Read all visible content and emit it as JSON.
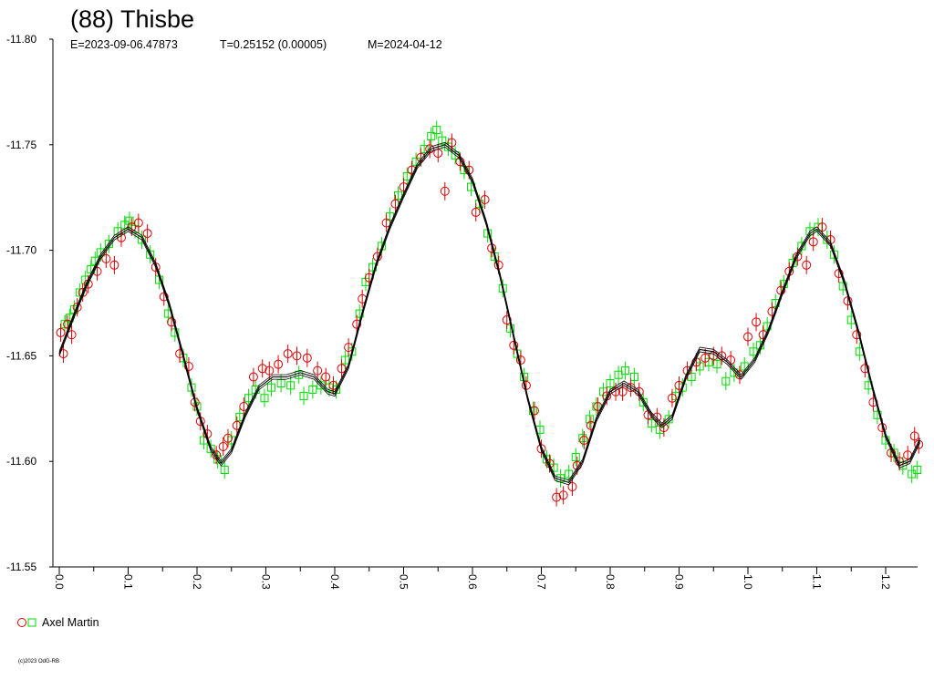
{
  "chart_data": {
    "type": "scatter",
    "title": "(88) Thisbe",
    "subtitle": {
      "epoch": "E=2023-09-06.47873",
      "period": "T=0.25152 (0.00005)",
      "mean": "M=2024-04-12"
    },
    "xlabel": "",
    "ylabel": "",
    "xlim": [
      0.0,
      1.25
    ],
    "ylim": [
      -11.55,
      -11.8
    ],
    "y_inverted": true,
    "grid": false,
    "xticks": [
      "0.0",
      "0.1",
      "0.2",
      "0.3",
      "0.4",
      "0.5",
      "0.6",
      "0.7",
      "0.8",
      "0.9",
      "1.0",
      "1.1",
      "1.2"
    ],
    "yticks": [
      "-11.80",
      "-11.75",
      "-11.70",
      "-11.65",
      "-11.60",
      "-11.55"
    ],
    "fit_curve": {
      "name": "",
      "color": "#000000",
      "points": [
        [
          0.0,
          -11.651
        ],
        [
          0.02,
          -11.668
        ],
        [
          0.04,
          -11.684
        ],
        [
          0.06,
          -11.697
        ],
        [
          0.08,
          -11.706
        ],
        [
          0.1,
          -11.71
        ],
        [
          0.12,
          -11.706
        ],
        [
          0.14,
          -11.693
        ],
        [
          0.16,
          -11.674
        ],
        [
          0.18,
          -11.65
        ],
        [
          0.2,
          -11.625
        ],
        [
          0.22,
          -11.606
        ],
        [
          0.235,
          -11.599
        ],
        [
          0.25,
          -11.605
        ],
        [
          0.27,
          -11.622
        ],
        [
          0.29,
          -11.635
        ],
        [
          0.31,
          -11.64
        ],
        [
          0.33,
          -11.64
        ],
        [
          0.35,
          -11.642
        ],
        [
          0.37,
          -11.64
        ],
        [
          0.39,
          -11.633
        ],
        [
          0.4,
          -11.632
        ],
        [
          0.42,
          -11.645
        ],
        [
          0.44,
          -11.67
        ],
        [
          0.46,
          -11.693
        ],
        [
          0.48,
          -11.711
        ],
        [
          0.5,
          -11.726
        ],
        [
          0.52,
          -11.74
        ],
        [
          0.54,
          -11.748
        ],
        [
          0.56,
          -11.75
        ],
        [
          0.58,
          -11.745
        ],
        [
          0.6,
          -11.733
        ],
        [
          0.62,
          -11.713
        ],
        [
          0.64,
          -11.688
        ],
        [
          0.66,
          -11.659
        ],
        [
          0.68,
          -11.63
        ],
        [
          0.7,
          -11.606
        ],
        [
          0.72,
          -11.592
        ],
        [
          0.74,
          -11.59
        ],
        [
          0.76,
          -11.6
        ],
        [
          0.78,
          -11.62
        ],
        [
          0.8,
          -11.633
        ],
        [
          0.82,
          -11.637
        ],
        [
          0.84,
          -11.633
        ],
        [
          0.86,
          -11.622
        ],
        [
          0.875,
          -11.617
        ],
        [
          0.89,
          -11.621
        ],
        [
          0.91,
          -11.64
        ],
        [
          0.93,
          -11.653
        ],
        [
          0.95,
          -11.652
        ],
        [
          0.97,
          -11.647
        ],
        [
          0.99,
          -11.64
        ],
        [
          1.01,
          -11.648
        ],
        [
          1.03,
          -11.662
        ],
        [
          1.05,
          -11.68
        ],
        [
          1.07,
          -11.697
        ],
        [
          1.09,
          -11.708
        ],
        [
          1.1,
          -11.71
        ],
        [
          1.12,
          -11.703
        ],
        [
          1.14,
          -11.685
        ],
        [
          1.16,
          -11.662
        ],
        [
          1.18,
          -11.636
        ],
        [
          1.2,
          -11.612
        ],
        [
          1.22,
          -11.598
        ],
        [
          1.235,
          -11.6
        ],
        [
          1.25,
          -11.61
        ]
      ]
    },
    "series": [
      {
        "name": "Axel Martin",
        "color": "#dd0000",
        "marker": "circle",
        "points": [
          [
            0.002,
            -11.661
          ],
          [
            0.006,
            -11.651
          ],
          [
            0.012,
            -11.665
          ],
          [
            0.018,
            -11.66
          ],
          [
            0.026,
            -11.673
          ],
          [
            0.034,
            -11.68
          ],
          [
            0.042,
            -11.684
          ],
          [
            0.055,
            -11.69
          ],
          [
            0.068,
            -11.696
          ],
          [
            0.08,
            -11.693
          ],
          [
            0.09,
            -11.706
          ],
          [
            0.105,
            -11.711
          ],
          [
            0.115,
            -11.713
          ],
          [
            0.128,
            -11.708
          ],
          [
            0.14,
            -11.692
          ],
          [
            0.152,
            -11.678
          ],
          [
            0.163,
            -11.666
          ],
          [
            0.175,
            -11.651
          ],
          [
            0.188,
            -11.645
          ],
          [
            0.197,
            -11.628
          ],
          [
            0.205,
            -11.619
          ],
          [
            0.215,
            -11.613
          ],
          [
            0.228,
            -11.603
          ],
          [
            0.238,
            -11.607
          ],
          [
            0.245,
            -11.611
          ],
          [
            0.258,
            -11.617
          ],
          [
            0.268,
            -11.626
          ],
          [
            0.282,
            -11.64
          ],
          [
            0.295,
            -11.644
          ],
          [
            0.305,
            -11.643
          ],
          [
            0.318,
            -11.646
          ],
          [
            0.332,
            -11.651
          ],
          [
            0.345,
            -11.65
          ],
          [
            0.36,
            -11.649
          ],
          [
            0.375,
            -11.643
          ],
          [
            0.387,
            -11.64
          ],
          [
            0.398,
            -11.636
          ],
          [
            0.41,
            -11.644
          ],
          [
            0.42,
            -11.654
          ],
          [
            0.432,
            -11.665
          ],
          [
            0.44,
            -11.677
          ],
          [
            0.45,
            -11.687
          ],
          [
            0.462,
            -11.697
          ],
          [
            0.475,
            -11.713
          ],
          [
            0.488,
            -11.722
          ],
          [
            0.5,
            -11.73
          ],
          [
            0.512,
            -11.738
          ],
          [
            0.525,
            -11.744
          ],
          [
            0.538,
            -11.748
          ],
          [
            0.55,
            -11.746
          ],
          [
            0.56,
            -11.728
          ],
          [
            0.57,
            -11.751
          ],
          [
            0.582,
            -11.742
          ],
          [
            0.595,
            -11.738
          ],
          [
            0.605,
            -11.718
          ],
          [
            0.618,
            -11.724
          ],
          [
            0.628,
            -11.701
          ],
          [
            0.638,
            -11.693
          ],
          [
            0.65,
            -11.667
          ],
          [
            0.66,
            -11.655
          ],
          [
            0.67,
            -11.648
          ],
          [
            0.678,
            -11.636
          ],
          [
            0.69,
            -11.624
          ],
          [
            0.7,
            -11.606
          ],
          [
            0.712,
            -11.599
          ],
          [
            0.722,
            -11.583
          ],
          [
            0.732,
            -11.584
          ],
          [
            0.745,
            -11.588
          ],
          [
            0.752,
            -11.598
          ],
          [
            0.762,
            -11.61
          ],
          [
            0.772,
            -11.617
          ],
          [
            0.782,
            -11.626
          ],
          [
            0.795,
            -11.631
          ],
          [
            0.808,
            -11.633
          ],
          [
            0.818,
            -11.633
          ],
          [
            0.83,
            -11.635
          ],
          [
            0.842,
            -11.633
          ],
          [
            0.855,
            -11.622
          ],
          [
            0.868,
            -11.621
          ],
          [
            0.878,
            -11.616
          ],
          [
            0.89,
            -11.63
          ],
          [
            0.9,
            -11.636
          ],
          [
            0.912,
            -11.643
          ],
          [
            0.925,
            -11.647
          ],
          [
            0.938,
            -11.649
          ],
          [
            0.95,
            -11.65
          ],
          [
            0.962,
            -11.65
          ],
          [
            0.975,
            -11.648
          ],
          [
            0.988,
            -11.641
          ],
          [
            1.0,
            -11.659
          ],
          [
            1.012,
            -11.666
          ],
          [
            1.022,
            -11.66
          ],
          [
            1.035,
            -11.671
          ],
          [
            1.048,
            -11.681
          ],
          [
            1.06,
            -11.69
          ],
          [
            1.072,
            -11.697
          ],
          [
            1.085,
            -11.693
          ],
          [
            1.095,
            -11.704
          ],
          [
            1.108,
            -11.711
          ],
          [
            1.12,
            -11.705
          ],
          [
            1.132,
            -11.689
          ],
          [
            1.145,
            -11.676
          ],
          [
            1.158,
            -11.66
          ],
          [
            1.17,
            -11.644
          ],
          [
            1.182,
            -11.628
          ],
          [
            1.195,
            -11.616
          ],
          [
            1.208,
            -11.604
          ],
          [
            1.22,
            -11.6
          ],
          [
            1.232,
            -11.603
          ],
          [
            1.242,
            -11.612
          ],
          [
            1.248,
            -11.608
          ]
        ]
      },
      {
        "name": "",
        "color": "#00dd00",
        "marker": "square",
        "points": [
          [
            0.008,
            -11.665
          ],
          [
            0.015,
            -11.668
          ],
          [
            0.022,
            -11.672
          ],
          [
            0.03,
            -11.68
          ],
          [
            0.038,
            -11.686
          ],
          [
            0.046,
            -11.691
          ],
          [
            0.052,
            -11.695
          ],
          [
            0.06,
            -11.699
          ],
          [
            0.072,
            -11.703
          ],
          [
            0.085,
            -11.709
          ],
          [
            0.095,
            -11.712
          ],
          [
            0.102,
            -11.714
          ],
          [
            0.11,
            -11.71
          ],
          [
            0.12,
            -11.705
          ],
          [
            0.132,
            -11.698
          ],
          [
            0.145,
            -11.686
          ],
          [
            0.158,
            -11.67
          ],
          [
            0.168,
            -11.661
          ],
          [
            0.18,
            -11.649
          ],
          [
            0.192,
            -11.635
          ],
          [
            0.2,
            -11.626
          ],
          [
            0.21,
            -11.61
          ],
          [
            0.22,
            -11.606
          ],
          [
            0.23,
            -11.601
          ],
          [
            0.24,
            -11.596
          ],
          [
            0.25,
            -11.61
          ],
          [
            0.262,
            -11.621
          ],
          [
            0.275,
            -11.63
          ],
          [
            0.285,
            -11.634
          ],
          [
            0.298,
            -11.63
          ],
          [
            0.308,
            -11.635
          ],
          [
            0.322,
            -11.637
          ],
          [
            0.336,
            -11.636
          ],
          [
            0.348,
            -11.641
          ],
          [
            0.355,
            -11.631
          ],
          [
            0.368,
            -11.634
          ],
          [
            0.38,
            -11.636
          ],
          [
            0.392,
            -11.635
          ],
          [
            0.402,
            -11.634
          ],
          [
            0.415,
            -11.648
          ],
          [
            0.425,
            -11.652
          ],
          [
            0.436,
            -11.67
          ],
          [
            0.445,
            -11.685
          ],
          [
            0.455,
            -11.692
          ],
          [
            0.468,
            -11.702
          ],
          [
            0.48,
            -11.716
          ],
          [
            0.492,
            -11.726
          ],
          [
            0.505,
            -11.735
          ],
          [
            0.518,
            -11.742
          ],
          [
            0.53,
            -11.748
          ],
          [
            0.54,
            -11.754
          ],
          [
            0.548,
            -11.757
          ],
          [
            0.556,
            -11.752
          ],
          [
            0.565,
            -11.749
          ],
          [
            0.575,
            -11.745
          ],
          [
            0.588,
            -11.738
          ],
          [
            0.598,
            -11.73
          ],
          [
            0.61,
            -11.722
          ],
          [
            0.622,
            -11.708
          ],
          [
            0.632,
            -11.697
          ],
          [
            0.644,
            -11.682
          ],
          [
            0.655,
            -11.663
          ],
          [
            0.665,
            -11.651
          ],
          [
            0.675,
            -11.64
          ],
          [
            0.688,
            -11.624
          ],
          [
            0.698,
            -11.615
          ],
          [
            0.708,
            -11.601
          ],
          [
            0.718,
            -11.597
          ],
          [
            0.728,
            -11.592
          ],
          [
            0.74,
            -11.594
          ],
          [
            0.75,
            -11.602
          ],
          [
            0.76,
            -11.611
          ],
          [
            0.77,
            -11.62
          ],
          [
            0.78,
            -11.626
          ],
          [
            0.79,
            -11.633
          ],
          [
            0.8,
            -11.637
          ],
          [
            0.812,
            -11.641
          ],
          [
            0.822,
            -11.643
          ],
          [
            0.835,
            -11.64
          ],
          [
            0.848,
            -11.628
          ],
          [
            0.86,
            -11.618
          ],
          [
            0.872,
            -11.615
          ],
          [
            0.885,
            -11.62
          ],
          [
            0.895,
            -11.631
          ],
          [
            0.905,
            -11.635
          ],
          [
            0.918,
            -11.64
          ],
          [
            0.93,
            -11.645
          ],
          [
            0.943,
            -11.647
          ],
          [
            0.955,
            -11.646
          ],
          [
            0.968,
            -11.638
          ],
          [
            0.98,
            -11.642
          ],
          [
            0.995,
            -11.645
          ],
          [
            1.008,
            -11.652
          ],
          [
            1.018,
            -11.655
          ],
          [
            1.028,
            -11.664
          ],
          [
            1.04,
            -11.675
          ],
          [
            1.052,
            -11.684
          ],
          [
            1.065,
            -11.694
          ],
          [
            1.078,
            -11.702
          ],
          [
            1.09,
            -11.709
          ],
          [
            1.102,
            -11.711
          ],
          [
            1.115,
            -11.705
          ],
          [
            1.125,
            -11.698
          ],
          [
            1.138,
            -11.683
          ],
          [
            1.15,
            -11.667
          ],
          [
            1.162,
            -11.652
          ],
          [
            1.175,
            -11.636
          ],
          [
            1.188,
            -11.622
          ],
          [
            1.2,
            -11.61
          ],
          [
            1.212,
            -11.604
          ],
          [
            1.225,
            -11.598
          ],
          [
            1.238,
            -11.594
          ],
          [
            1.246,
            -11.596
          ]
        ]
      }
    ],
    "legend": {
      "position": "bottom-left",
      "label": "Axel Martin"
    },
    "copyright": "(c)2023 OdG-RB"
  }
}
